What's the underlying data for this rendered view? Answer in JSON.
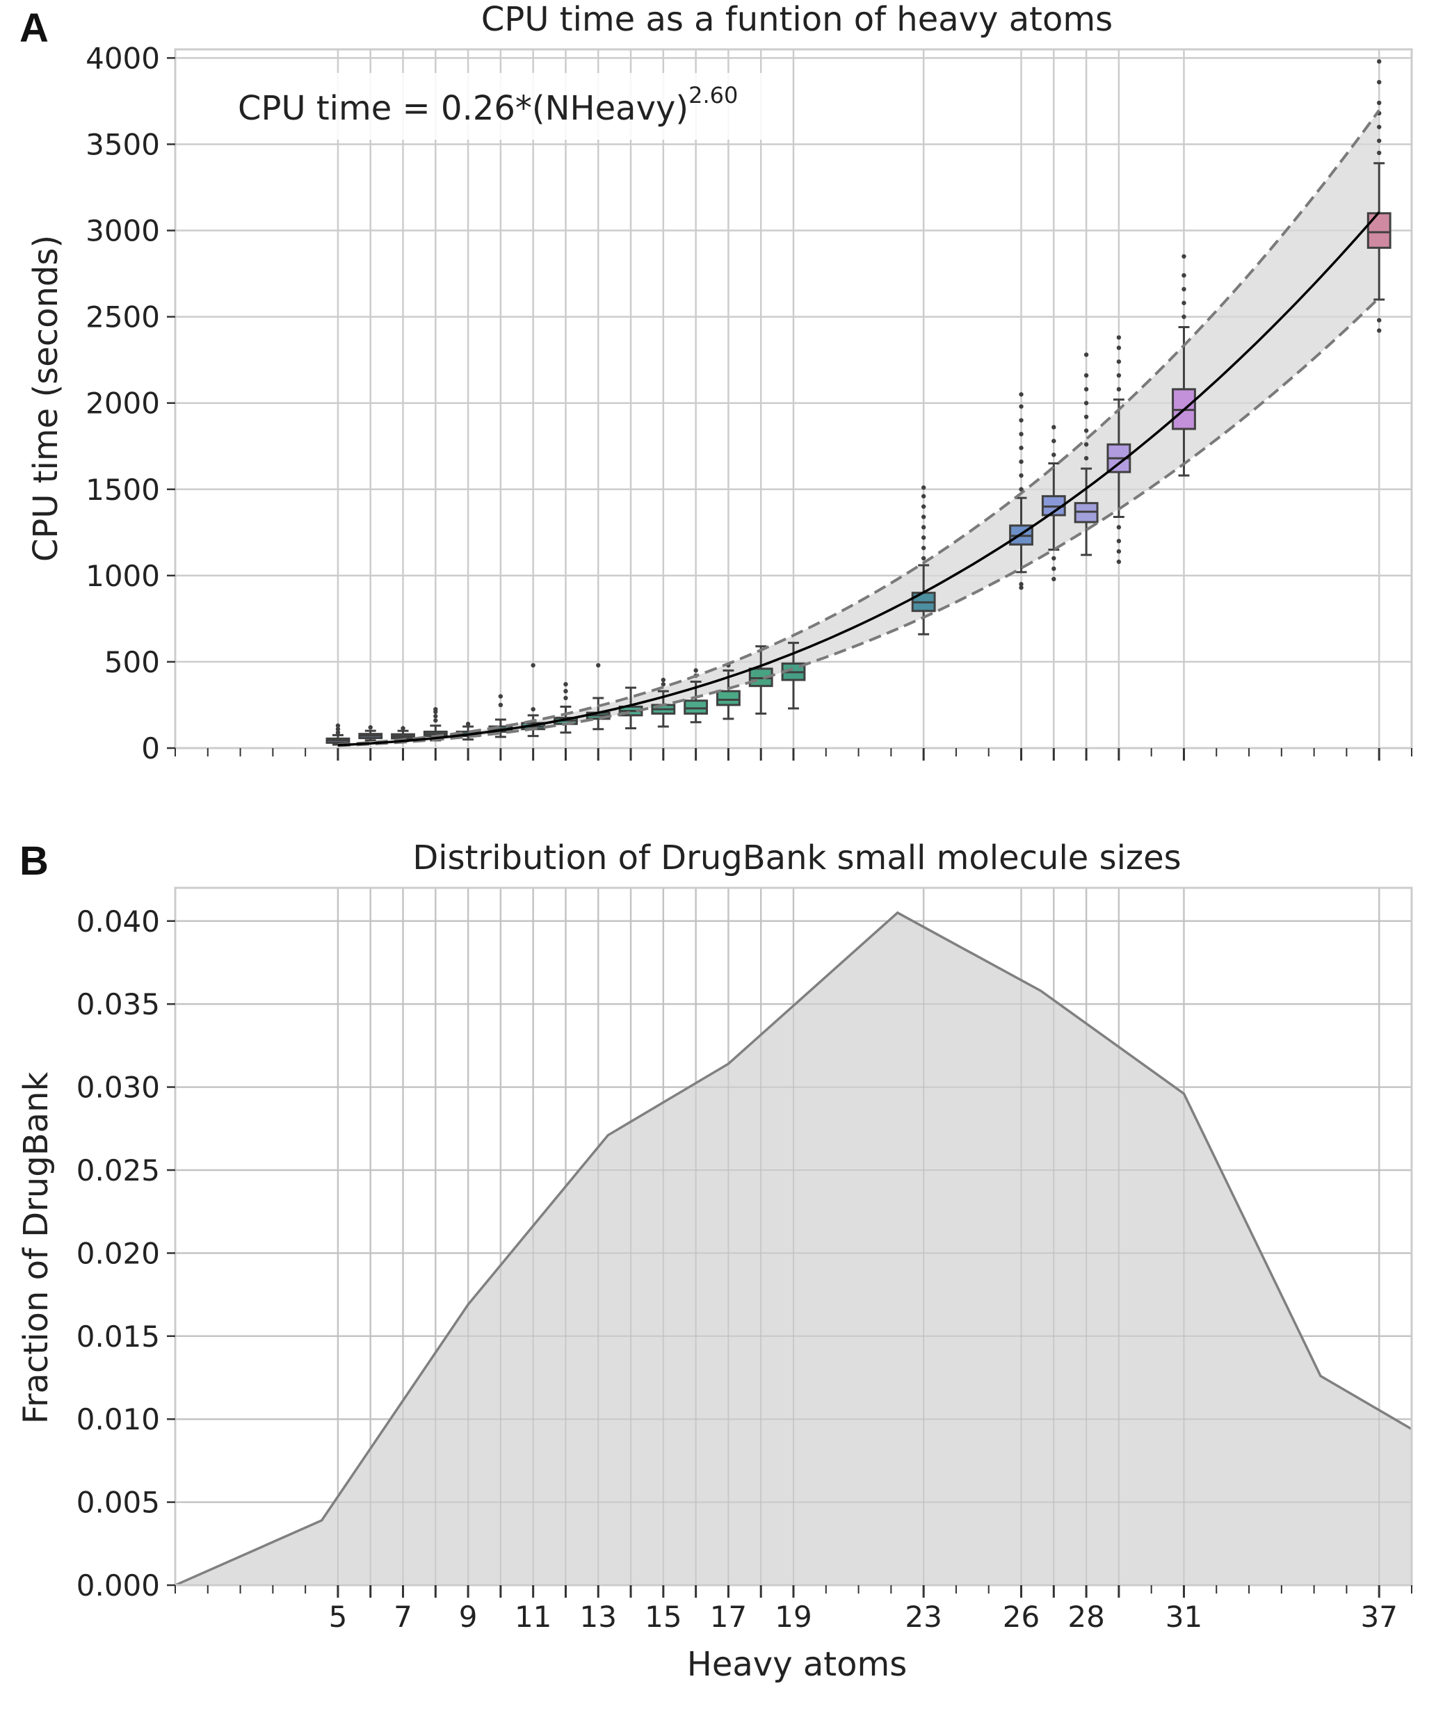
{
  "colors": {
    "grid": "#cccccc",
    "band": "#d8d8d8",
    "fit_line": "#000000",
    "bound_line": "#7a7a7a",
    "area_fill": "#dcdcdc",
    "area_line": "#808080",
    "box_edge": "#404040"
  },
  "chart_data": [
    {
      "panel_label": "A",
      "type": "box",
      "title": "CPU time as a funtion of heavy atoms",
      "xlabel": "",
      "ylabel": "CPU time (seconds)",
      "xlim": [
        0,
        38
      ],
      "ylim": [
        0,
        4050
      ],
      "yticks": [
        0,
        500,
        1000,
        1500,
        2000,
        2500,
        3000,
        3500,
        4000
      ],
      "grid": true,
      "annotation": {
        "text": "CPU time = 0.26*(NHeavy)",
        "exponent": "2.60"
      },
      "fit": {
        "coef": 0.26,
        "power": 2.6,
        "lower_factor": 0.84,
        "upper_factor": 1.19,
        "x_range": [
          5,
          37
        ]
      },
      "boxes": [
        {
          "x": 5,
          "q1": 35,
          "median": 45,
          "q3": 55,
          "whisker_low": 20,
          "whisker_high": 75,
          "outliers": [
            90,
            110,
            130
          ],
          "color": "#7f8fb0"
        },
        {
          "x": 6,
          "q1": 62,
          "median": 72,
          "q3": 82,
          "whisker_low": 45,
          "whisker_high": 100,
          "outliers": [
            120
          ],
          "color": "#6f8aa8"
        },
        {
          "x": 7,
          "q1": 58,
          "median": 68,
          "q3": 80,
          "whisker_low": 40,
          "whisker_high": 100,
          "outliers": [
            115
          ],
          "color": "#6a90a0"
        },
        {
          "x": 8,
          "q1": 70,
          "median": 82,
          "q3": 95,
          "whisker_low": 45,
          "whisker_high": 130,
          "outliers": [
            160,
            185,
            210,
            225
          ],
          "color": "#6697a0"
        },
        {
          "x": 9,
          "q1": 70,
          "median": 80,
          "q3": 95,
          "whisker_low": 50,
          "whisker_high": 125,
          "outliers": [
            140
          ],
          "color": "#5f9aa0"
        },
        {
          "x": 10,
          "q1": 95,
          "median": 110,
          "q3": 125,
          "whisker_low": 65,
          "whisker_high": 165,
          "outliers": [
            250,
            300
          ],
          "color": "#5aa09c"
        },
        {
          "x": 11,
          "q1": 110,
          "median": 125,
          "q3": 145,
          "whisker_low": 70,
          "whisker_high": 190,
          "outliers": [
            225,
            480
          ],
          "color": "#55a39a"
        },
        {
          "x": 12,
          "q1": 140,
          "median": 160,
          "q3": 175,
          "whisker_low": 90,
          "whisker_high": 240,
          "outliers": [
            290,
            330,
            370
          ],
          "color": "#50a696"
        },
        {
          "x": 13,
          "q1": 170,
          "median": 190,
          "q3": 205,
          "whisker_low": 110,
          "whisker_high": 290,
          "outliers": [
            480
          ],
          "color": "#4fa893"
        },
        {
          "x": 14,
          "q1": 190,
          "median": 215,
          "q3": 240,
          "whisker_low": 115,
          "whisker_high": 350,
          "outliers": [],
          "color": "#4ea990"
        },
        {
          "x": 15,
          "q1": 200,
          "median": 225,
          "q3": 250,
          "whisker_low": 125,
          "whisker_high": 330,
          "outliers": [
            370,
            395
          ],
          "color": "#4daa8d"
        },
        {
          "x": 16,
          "q1": 200,
          "median": 230,
          "q3": 275,
          "whisker_low": 150,
          "whisker_high": 385,
          "outliers": [
            420,
            450
          ],
          "color": "#4caa8a"
        },
        {
          "x": 17,
          "q1": 250,
          "median": 280,
          "q3": 330,
          "whisker_low": 170,
          "whisker_high": 450,
          "outliers": [
            480
          ],
          "color": "#4aa887"
        },
        {
          "x": 18,
          "q1": 360,
          "median": 405,
          "q3": 460,
          "whisker_low": 200,
          "whisker_high": 590,
          "outliers": [],
          "color": "#48a382"
        },
        {
          "x": 19,
          "q1": 395,
          "median": 440,
          "q3": 490,
          "whisker_low": 230,
          "whisker_high": 610,
          "outliers": [],
          "color": "#469f85"
        },
        {
          "x": 23,
          "q1": 795,
          "median": 845,
          "q3": 900,
          "whisker_low": 660,
          "whisker_high": 1060,
          "outliers": [
            1100,
            1160,
            1220,
            1280,
            1340,
            1400,
            1460,
            1510
          ],
          "color": "#4b8fa0"
        },
        {
          "x": 26,
          "q1": 1180,
          "median": 1230,
          "q3": 1290,
          "whisker_low": 1020,
          "whisker_high": 1450,
          "outliers": [
            930,
            950,
            1500,
            1580,
            1660,
            1740,
            1820,
            1900,
            1980,
            2050
          ],
          "color": "#6d8fc8"
        },
        {
          "x": 27,
          "q1": 1350,
          "median": 1400,
          "q3": 1460,
          "whisker_low": 1150,
          "whisker_high": 1650,
          "outliers": [
            980,
            1040,
            1100,
            1700,
            1780,
            1860
          ],
          "color": "#8898d8"
        },
        {
          "x": 28,
          "q1": 1310,
          "median": 1370,
          "q3": 1420,
          "whisker_low": 1120,
          "whisker_high": 1620,
          "outliers": [
            1680,
            1760,
            1840,
            1920,
            2000,
            2080,
            2160,
            2280
          ],
          "color": "#a2a0da"
        },
        {
          "x": 29,
          "q1": 1600,
          "median": 1680,
          "q3": 1760,
          "whisker_low": 1340,
          "whisker_high": 2020,
          "outliers": [
            1080,
            1140,
            1200,
            1280,
            2080,
            2160,
            2240,
            2320,
            2380
          ],
          "color": "#b29ce0"
        },
        {
          "x": 31,
          "q1": 1850,
          "median": 1960,
          "q3": 2080,
          "whisker_low": 1580,
          "whisker_high": 2440,
          "outliers": [
            2500,
            2580,
            2660,
            2740,
            2850
          ],
          "color": "#c391da"
        },
        {
          "x": 37,
          "q1": 2900,
          "median": 2990,
          "q3": 3100,
          "whisker_low": 2600,
          "whisker_high": 3390,
          "outliers": [
            2420,
            2480,
            3450,
            3520,
            3600,
            3680,
            3740,
            3860,
            3980
          ],
          "color": "#cf8aa2"
        }
      ]
    },
    {
      "panel_label": "B",
      "type": "area",
      "title": "Distribution of DrugBank small molecule sizes",
      "xlabel": "Heavy atoms",
      "ylabel": "Fraction of DrugBank",
      "xlim": [
        0,
        38
      ],
      "ylim": [
        0,
        0.042
      ],
      "yticks": [
        "0.000",
        "0.005",
        "0.010",
        "0.015",
        "0.020",
        "0.025",
        "0.030",
        "0.035",
        "0.040"
      ],
      "xticks": [
        "5",
        "7",
        "9",
        "11",
        "13",
        "15",
        "17",
        "19",
        "23",
        "26",
        "28",
        "31",
        "37"
      ],
      "grid": true,
      "x": [
        0,
        4.5,
        9,
        13.3,
        17,
        22.2,
        26.6,
        31,
        35.2,
        38
      ],
      "y": [
        0.0,
        0.0039,
        0.0169,
        0.0271,
        0.0314,
        0.0405,
        0.0358,
        0.0296,
        0.0126,
        0.0094
      ]
    }
  ]
}
